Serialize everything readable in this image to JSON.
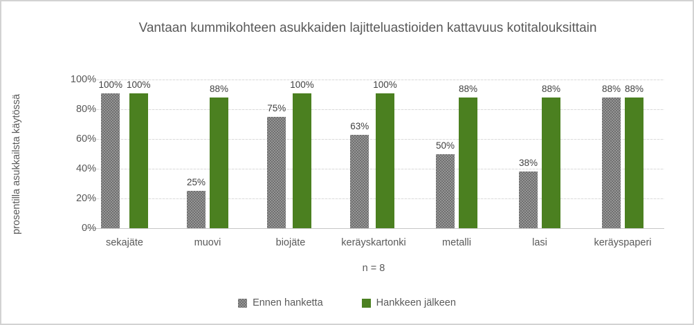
{
  "chart_data": {
    "type": "bar",
    "title": "Vantaan kummikohteen asukkaiden lajitteluastioiden kattavuus kotitalouksittain",
    "ylabel": "prosentilla asukkailsta käytössä",
    "xlabel": "n = 8",
    "categories": [
      "sekajäte",
      "muovi",
      "biojäte",
      "keräyskartonki",
      "metalli",
      "lasi",
      "keräyspaperi"
    ],
    "series": [
      {
        "name": "Ennen hanketta",
        "color": "#7f7f7f",
        "pattern": "dotted",
        "values": [
          100,
          25,
          75,
          63,
          50,
          38,
          88
        ]
      },
      {
        "name": "Hankkeen jälkeen",
        "color": "#4b8020",
        "pattern": "solid",
        "values": [
          100,
          88,
          100,
          100,
          88,
          88,
          88
        ]
      }
    ],
    "data_label_suffix": "%",
    "ylim": [
      0,
      100
    ],
    "yticks": [
      {
        "value": 0,
        "label": "0%"
      },
      {
        "value": 20,
        "label": "20%"
      },
      {
        "value": 40,
        "label": "40%"
      },
      {
        "value": 60,
        "label": "60%"
      },
      {
        "value": 80,
        "label": "80%"
      },
      {
        "value": 100,
        "label": "100%"
      }
    ],
    "grid": true,
    "legend_position": "bottom"
  }
}
